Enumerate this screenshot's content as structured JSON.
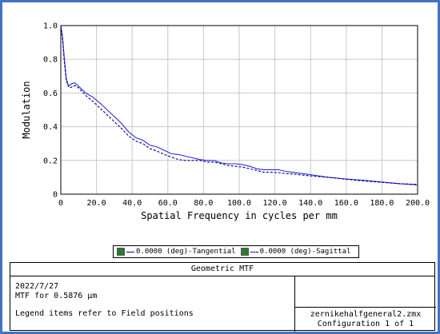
{
  "chart_data": {
    "type": "line",
    "xlabel": "Spatial Frequency in cycles per mm",
    "ylabel": "Modulation",
    "xlim": [
      0,
      200
    ],
    "ylim": [
      0,
      1.0
    ],
    "x_ticks": [
      "0",
      "20.0",
      "40.0",
      "60.0",
      "80.0",
      "100.0",
      "120.0",
      "140.0",
      "160.0",
      "180.0",
      "200.0"
    ],
    "y_ticks": [
      "0",
      "0.2",
      "0.4",
      "0.6",
      "0.8",
      "1.0"
    ],
    "grid": true,
    "series": [
      {
        "name": "0.0000 (deg)-Tangential",
        "style": "solid",
        "color": "#2b2bd6",
        "points": [
          [
            0,
            1.0
          ],
          [
            1,
            0.93
          ],
          [
            2,
            0.8
          ],
          [
            3,
            0.69
          ],
          [
            4,
            0.65
          ],
          [
            5,
            0.645
          ],
          [
            6,
            0.655
          ],
          [
            8,
            0.66
          ],
          [
            10,
            0.64
          ],
          [
            14,
            0.6
          ],
          [
            18,
            0.575
          ],
          [
            22,
            0.54
          ],
          [
            26,
            0.5
          ],
          [
            30,
            0.46
          ],
          [
            34,
            0.42
          ],
          [
            38,
            0.37
          ],
          [
            42,
            0.335
          ],
          [
            46,
            0.32
          ],
          [
            50,
            0.29
          ],
          [
            54,
            0.28
          ],
          [
            58,
            0.26
          ],
          [
            62,
            0.24
          ],
          [
            66,
            0.235
          ],
          [
            70,
            0.225
          ],
          [
            74,
            0.215
          ],
          [
            78,
            0.205
          ],
          [
            82,
            0.2
          ],
          [
            86,
            0.2
          ],
          [
            90,
            0.185
          ],
          [
            94,
            0.18
          ],
          [
            98,
            0.18
          ],
          [
            102,
            0.175
          ],
          [
            106,
            0.165
          ],
          [
            110,
            0.15
          ],
          [
            114,
            0.145
          ],
          [
            118,
            0.145
          ],
          [
            122,
            0.145
          ],
          [
            126,
            0.135
          ],
          [
            130,
            0.13
          ],
          [
            140,
            0.115
          ],
          [
            150,
            0.1
          ],
          [
            160,
            0.09
          ],
          [
            170,
            0.082
          ],
          [
            180,
            0.072
          ],
          [
            190,
            0.062
          ],
          [
            200,
            0.055
          ]
        ]
      },
      {
        "name": "0.0000 (deg)-Sagittal",
        "style": "dashed",
        "color": "#00008b",
        "points": [
          [
            0,
            1.0
          ],
          [
            1,
            0.92
          ],
          [
            2,
            0.78
          ],
          [
            3,
            0.68
          ],
          [
            4,
            0.645
          ],
          [
            5,
            0.63
          ],
          [
            6,
            0.635
          ],
          [
            8,
            0.645
          ],
          [
            10,
            0.63
          ],
          [
            14,
            0.585
          ],
          [
            18,
            0.55
          ],
          [
            22,
            0.51
          ],
          [
            26,
            0.47
          ],
          [
            30,
            0.43
          ],
          [
            34,
            0.39
          ],
          [
            38,
            0.345
          ],
          [
            42,
            0.315
          ],
          [
            46,
            0.3
          ],
          [
            50,
            0.27
          ],
          [
            54,
            0.255
          ],
          [
            58,
            0.235
          ],
          [
            62,
            0.22
          ],
          [
            66,
            0.205
          ],
          [
            70,
            0.2
          ],
          [
            74,
            0.2
          ],
          [
            78,
            0.2
          ],
          [
            82,
            0.19
          ],
          [
            86,
            0.19
          ],
          [
            90,
            0.18
          ],
          [
            94,
            0.17
          ],
          [
            98,
            0.165
          ],
          [
            102,
            0.16
          ],
          [
            106,
            0.15
          ],
          [
            110,
            0.14
          ],
          [
            114,
            0.13
          ],
          [
            118,
            0.13
          ],
          [
            122,
            0.128
          ],
          [
            126,
            0.122
          ],
          [
            130,
            0.12
          ],
          [
            140,
            0.108
          ],
          [
            150,
            0.1
          ],
          [
            160,
            0.088
          ],
          [
            170,
            0.078
          ],
          [
            180,
            0.07
          ],
          [
            190,
            0.062
          ],
          [
            200,
            0.058
          ]
        ]
      }
    ]
  },
  "legend": {
    "items": [
      {
        "label": "0.0000 (deg)-Tangential"
      },
      {
        "label": "0.0000 (deg)-Sagittal"
      }
    ]
  },
  "info": {
    "title": "Geometric MTF",
    "date": "2022/7/27",
    "mtf_for": "MTF for 0.5876 µm",
    "note": "Legend items refer to Field positions",
    "filename": "zernikehalfgeneral2.zmx",
    "configuration": "Configuration 1 of 1"
  }
}
